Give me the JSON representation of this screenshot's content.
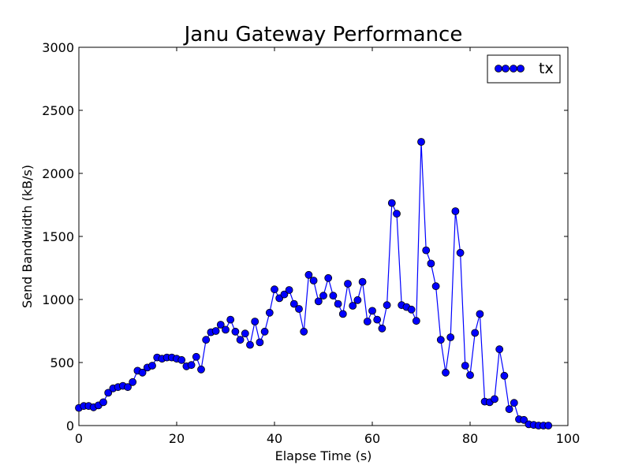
{
  "chart_data": {
    "type": "line",
    "title": "Janu Gateway Performance",
    "xlabel": "Elapse Time (s)",
    "ylabel": "Send Bandwidth (kB/s)",
    "xlim": [
      0,
      100
    ],
    "ylim": [
      0,
      3000
    ],
    "x_ticks": [
      0,
      20,
      40,
      60,
      80,
      100
    ],
    "y_ticks": [
      0,
      500,
      1000,
      1500,
      2000,
      2500,
      3000
    ],
    "grid": false,
    "legend_position": "top-right",
    "series": [
      {
        "name": "tx",
        "color": "#0000ff",
        "marker": "circle",
        "x": [
          0,
          1,
          2,
          3,
          4,
          5,
          6,
          7,
          8,
          9,
          10,
          11,
          12,
          13,
          14,
          15,
          16,
          17,
          18,
          19,
          20,
          21,
          22,
          23,
          24,
          25,
          26,
          27,
          28,
          29,
          30,
          31,
          32,
          33,
          34,
          35,
          36,
          37,
          38,
          39,
          40,
          41,
          42,
          43,
          44,
          45,
          46,
          47,
          48,
          49,
          50,
          51,
          52,
          53,
          54,
          55,
          56,
          57,
          58,
          59,
          60,
          61,
          62,
          63,
          64,
          65,
          66,
          67,
          68,
          69,
          70,
          71,
          72,
          73,
          74,
          75,
          76,
          77,
          78,
          79,
          80,
          81,
          82,
          83,
          84,
          85,
          86,
          87,
          88,
          89,
          90,
          91,
          92,
          93,
          94,
          95,
          96
        ],
        "y": [
          140,
          155,
          155,
          145,
          160,
          185,
          260,
          295,
          305,
          315,
          305,
          345,
          435,
          420,
          460,
          475,
          540,
          530,
          540,
          540,
          530,
          520,
          470,
          480,
          545,
          445,
          680,
          740,
          750,
          800,
          760,
          840,
          745,
          680,
          730,
          640,
          825,
          660,
          745,
          895,
          1080,
          1010,
          1040,
          1075,
          965,
          925,
          745,
          1195,
          1150,
          985,
          1030,
          1170,
          1030,
          965,
          885,
          1125,
          950,
          995,
          1140,
          825,
          910,
          840,
          770,
          955,
          1765,
          1680,
          955,
          940,
          920,
          830,
          2250,
          1390,
          1285,
          1105,
          680,
          420,
          700,
          1700,
          1370,
          475,
          400,
          735,
          885,
          190,
          185,
          210,
          605,
          395,
          130,
          180,
          50,
          45,
          10,
          5,
          0,
          0,
          0
        ]
      }
    ]
  }
}
